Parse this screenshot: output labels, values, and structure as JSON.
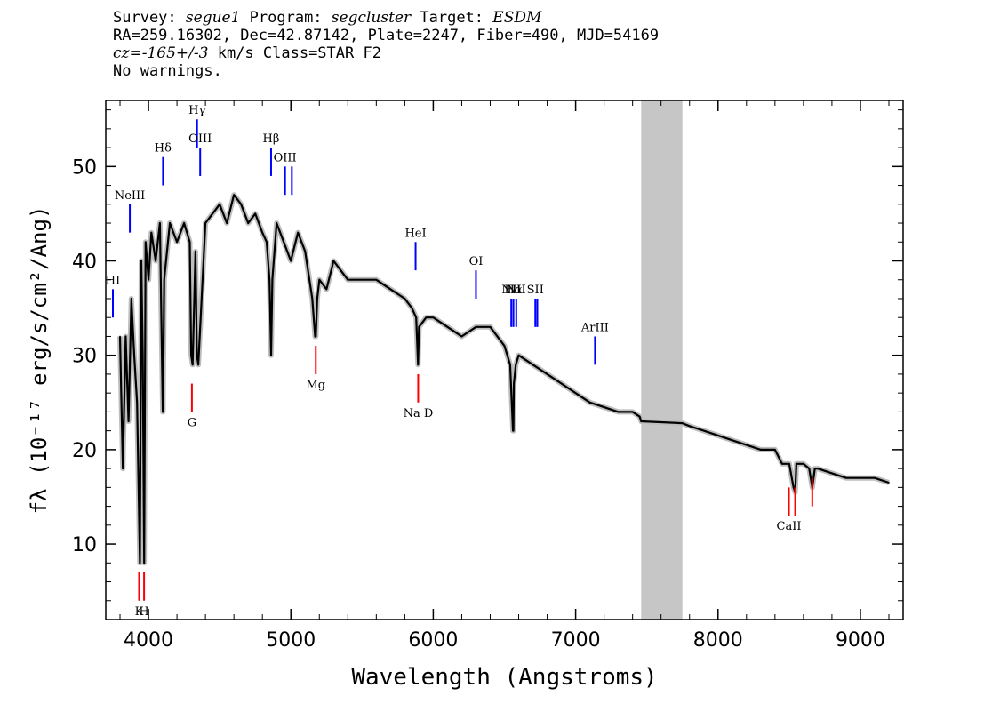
{
  "header": {
    "survey_label": "Survey:",
    "survey": "segue1",
    "program_label": "Program:",
    "program": "segcluster",
    "target_label": "Target:",
    "target": "ESDM",
    "line2": "RA=259.16302, Dec=42.87142, Plate=2247, Fiber=490, MJD=54169",
    "cz_label": "cz=",
    "cz": "-165+/-3",
    "cz_units": "km/s Class=STAR F2",
    "warnings": "No warnings."
  },
  "chart_data": {
    "type": "line",
    "title": "",
    "xlabel": "Wavelength (Angstroms)",
    "ylabel": "fλ (10⁻¹⁷ erg/s/cm²/Ang)",
    "xlim": [
      3700,
      9300
    ],
    "ylim": [
      2,
      57
    ],
    "xticks": [
      4000,
      5000,
      6000,
      7000,
      8000,
      9000
    ],
    "yticks": [
      10,
      20,
      30,
      40,
      50
    ],
    "masked_region": [
      7460,
      7750
    ],
    "series": [
      {
        "color": "#000000",
        "x": [
          3800,
          3820,
          3840,
          3860,
          3880,
          3900,
          3920,
          3940,
          3950,
          3960,
          3970,
          3980,
          4000,
          4020,
          4050,
          4080,
          4100,
          4102,
          4110,
          4150,
          4200,
          4250,
          4290,
          4300,
          4310,
          4330,
          4340,
          4350,
          4400,
          4450,
          4500,
          4550,
          4600,
          4650,
          4700,
          4750,
          4800,
          4830,
          4850,
          4861,
          4870,
          4900,
          4950,
          5000,
          5050,
          5100,
          5150,
          5170,
          5175,
          5185,
          5200,
          5250,
          5300,
          5400,
          5500,
          5600,
          5700,
          5800,
          5850,
          5880,
          5893,
          5900,
          5950,
          6000,
          6100,
          6200,
          6300,
          6400,
          6500,
          6540,
          6560,
          6563,
          6566,
          6580,
          6600,
          6700,
          6800,
          6900,
          7000,
          7100,
          7200,
          7300,
          7400,
          7450,
          7460,
          7750,
          7800,
          7900,
          8000,
          8100,
          8200,
          8300,
          8400,
          8450,
          8500,
          8530,
          8542,
          8550,
          8600,
          8640,
          8662,
          8680,
          8700,
          8800,
          8900,
          9000,
          9100,
          9200
        ],
        "y": [
          32,
          18,
          32,
          23,
          36,
          30,
          25,
          8,
          40,
          30,
          8,
          42,
          38,
          43,
          40,
          44,
          24,
          24,
          38,
          44,
          42,
          44,
          42,
          30,
          29,
          41,
          30,
          29,
          44,
          45,
          46,
          44,
          47,
          46,
          44,
          45,
          43,
          42,
          38,
          30,
          38,
          44,
          42,
          40,
          43,
          41,
          36,
          32,
          32,
          36,
          38,
          37,
          40,
          38,
          38,
          38,
          37,
          36,
          35,
          34,
          29,
          33,
          34,
          34,
          33,
          32,
          33,
          33,
          31,
          29,
          22,
          22,
          27,
          29,
          30,
          29,
          28,
          27,
          26,
          25,
          24.5,
          24,
          24,
          23.5,
          23,
          22.8,
          22.5,
          22,
          21.5,
          21,
          20.5,
          20,
          20,
          18.5,
          18.5,
          16,
          15.5,
          18.5,
          18.5,
          18,
          16,
          18,
          18,
          17.5,
          17,
          17,
          17,
          16.5
        ]
      }
    ],
    "lines_blue": [
      {
        "label": "HI",
        "x": 3750,
        "y0": 34,
        "y1": 37
      },
      {
        "label": "NeIII",
        "x": 3869,
        "y0": 43,
        "y1": 46
      },
      {
        "label": "Hδ",
        "x": 4102,
        "y0": 48,
        "y1": 51
      },
      {
        "label": "Hγ",
        "x": 4341,
        "y0": 52,
        "y1": 55
      },
      {
        "label": "OIII",
        "x": 4363,
        "y0": 49,
        "y1": 52
      },
      {
        "label": "Hβ",
        "x": 4861,
        "y0": 49,
        "y1": 52
      },
      {
        "label": "OIII",
        "x": 4959,
        "y0": 47,
        "y1": 50
      },
      {
        "label": "",
        "x": 5007,
        "y0": 47,
        "y1": 50
      },
      {
        "label": "HeI",
        "x": 5876,
        "y0": 39,
        "y1": 42
      },
      {
        "label": "OI",
        "x": 6300,
        "y0": 36,
        "y1": 39
      },
      {
        "label": "NII",
        "x": 6548,
        "y0": 33,
        "y1": 36
      },
      {
        "label": "Hα",
        "x": 6563,
        "y0": 33,
        "y1": 36
      },
      {
        "label": "NII",
        "x": 6583,
        "y0": 33,
        "y1": 36
      },
      {
        "label": "SII",
        "x": 6717,
        "y0": 33,
        "y1": 36
      },
      {
        "label": "",
        "x": 6731,
        "y0": 33,
        "y1": 36
      },
      {
        "label": "ArIII",
        "x": 7136,
        "y0": 29,
        "y1": 32
      }
    ],
    "lines_red": [
      {
        "label": "K",
        "x": 3934,
        "y0": 4,
        "y1": 7
      },
      {
        "label": "H",
        "x": 3969,
        "y0": 4,
        "y1": 7
      },
      {
        "label": "G",
        "x": 4305,
        "y0": 24,
        "y1": 27
      },
      {
        "label": "Mg",
        "x": 5175,
        "y0": 28,
        "y1": 31
      },
      {
        "label": "Na  D",
        "x": 5894,
        "y0": 25,
        "y1": 28
      },
      {
        "label": "CaII",
        "x": 8498,
        "y0": 13,
        "y1": 16
      },
      {
        "label": "",
        "x": 8542,
        "y0": 13,
        "y1": 16
      },
      {
        "label": "",
        "x": 8662,
        "y0": 14,
        "y1": 17
      }
    ]
  }
}
